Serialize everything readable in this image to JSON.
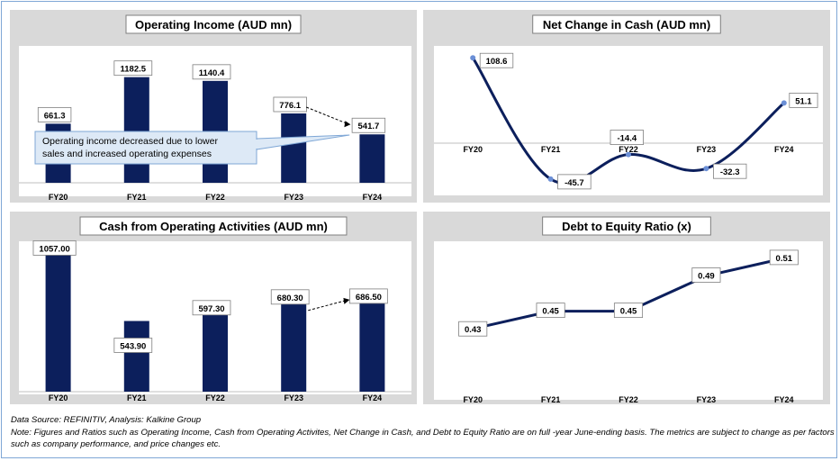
{
  "colors": {
    "bar": "#0c1f5c",
    "line": "#0c1f5c",
    "panel_bg": "#d9d9d9",
    "plot_bg": "#ffffff",
    "frame": "#7fa7d6",
    "callout_bg": "#dde9f6",
    "callout_border": "#7fa7d6"
  },
  "chart_data": [
    {
      "id": "operating-income",
      "type": "bar",
      "title": "Operating Income (AUD mn)",
      "categories": [
        "FY20",
        "FY21",
        "FY22",
        "FY23",
        "FY24"
      ],
      "values": [
        661.3,
        1182.5,
        1140.4,
        776.1,
        541.7
      ],
      "labels": [
        "661.3",
        "1182.5",
        "1140.4",
        "776.1",
        "541.7"
      ],
      "ylim": [
        0,
        1300
      ],
      "grid": false,
      "annotations": [
        {
          "text": "Operating income decreased due to lower sales and increased operating expenses"
        }
      ]
    },
    {
      "id": "net-change-cash",
      "type": "line",
      "title": "Net Change in Cash (AUD mn)",
      "categories": [
        "FY20",
        "FY21",
        "FY22",
        "FY23",
        "FY24"
      ],
      "values": [
        108.6,
        -45.7,
        -14.4,
        -32.3,
        51.1
      ],
      "labels": [
        "108.6",
        "-45.7",
        "-14.4",
        "-32.3",
        "51.1"
      ],
      "ylim": [
        -60,
        115
      ],
      "grid": false
    },
    {
      "id": "cash-operating",
      "type": "bar",
      "title": "Cash from Operating Activities (AUD mn)",
      "categories": [
        "FY20",
        "FY21",
        "FY22",
        "FY23",
        "FY24"
      ],
      "values": [
        1057.0,
        543.9,
        597.3,
        680.3,
        686.5
      ],
      "labels": [
        "1057.00",
        "543.90",
        "597.30",
        "680.30",
        "686.50"
      ],
      "ylim": [
        0,
        1060
      ],
      "grid": false
    },
    {
      "id": "debt-equity",
      "type": "line",
      "title": "Debt to Equity Ratio (x)",
      "categories": [
        "FY20",
        "FY21",
        "FY22",
        "FY23",
        "FY24"
      ],
      "values": [
        0.43,
        0.45,
        0.45,
        0.49,
        0.51
      ],
      "labels": [
        "0.43",
        "0.45",
        "0.45",
        "0.49",
        "0.51"
      ],
      "ylim": [
        0.42,
        0.515
      ],
      "grid": false
    }
  ],
  "footer": {
    "source": "Data Source: REFINITIV, Analysis: Kalkine Group",
    "note": "Note: Figures and Ratios such as Operating Income, Cash from Operating Activites, Net Change in Cash, and Debt to Equity Ratio are on full -year June-ending basis. The metrics are subject to change as per factors such as company performance, and price changes etc."
  }
}
